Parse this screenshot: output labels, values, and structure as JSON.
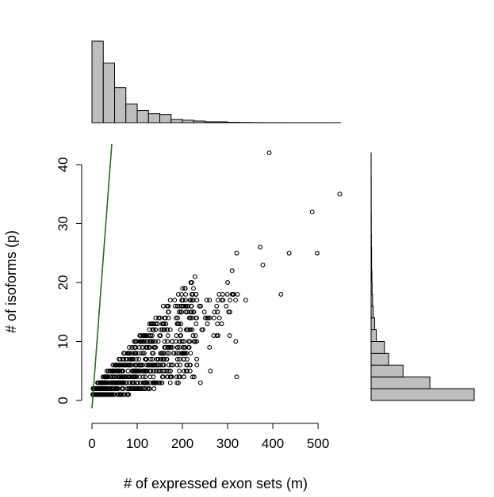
{
  "chart_data": {
    "type": "scatter",
    "xlabel": "# of expressed exon sets (m)",
    "ylabel": "# of isoforms (p)",
    "xlim": [
      0,
      550
    ],
    "ylim": [
      0,
      42
    ],
    "x_ticks": [
      "0",
      "100",
      "200",
      "300",
      "400",
      "500"
    ],
    "y_ticks": [
      "0",
      "10",
      "20",
      "30",
      "40"
    ],
    "reference_line": {
      "slope": 1,
      "intercept": 0
    },
    "outlier_points": [
      [
        392,
        42
      ],
      [
        548,
        35
      ],
      [
        487,
        32
      ],
      [
        372,
        26
      ],
      [
        436,
        25
      ],
      [
        498,
        25
      ],
      [
        320,
        25
      ],
      [
        378,
        23
      ],
      [
        310,
        22
      ],
      [
        418,
        18
      ],
      [
        300,
        20
      ],
      [
        322,
        18
      ],
      [
        340,
        17
      ],
      [
        290,
        17
      ],
      [
        297,
        16
      ],
      [
        318,
        10
      ],
      [
        260,
        9
      ],
      [
        320,
        4
      ],
      [
        262,
        5
      ],
      [
        240,
        3
      ],
      [
        232,
        6
      ],
      [
        270,
        14
      ]
    ],
    "top_histogram": {
      "bin_width": 25,
      "counts": [
        100,
        73,
        43,
        23,
        15,
        11,
        10,
        4,
        3,
        2,
        1,
        1,
        0.5,
        0.3,
        0.2,
        0.1,
        0.1,
        0.05,
        0.05,
        0.05,
        0.05,
        0.02
      ]
    },
    "right_histogram": {
      "bin_width": 2,
      "counts": [
        100,
        57,
        31,
        17,
        13,
        5,
        3.5,
        2,
        1.5,
        1,
        0.8,
        0.5,
        0.5,
        0.3,
        0.2,
        0.2,
        0.1,
        0.1,
        0.1,
        0.05,
        0.05
      ]
    },
    "grid": false,
    "legend": "none"
  },
  "colors": {
    "bar_fill": "#bebebe",
    "reference_line": "#2e6b1f",
    "points": "#000000"
  }
}
